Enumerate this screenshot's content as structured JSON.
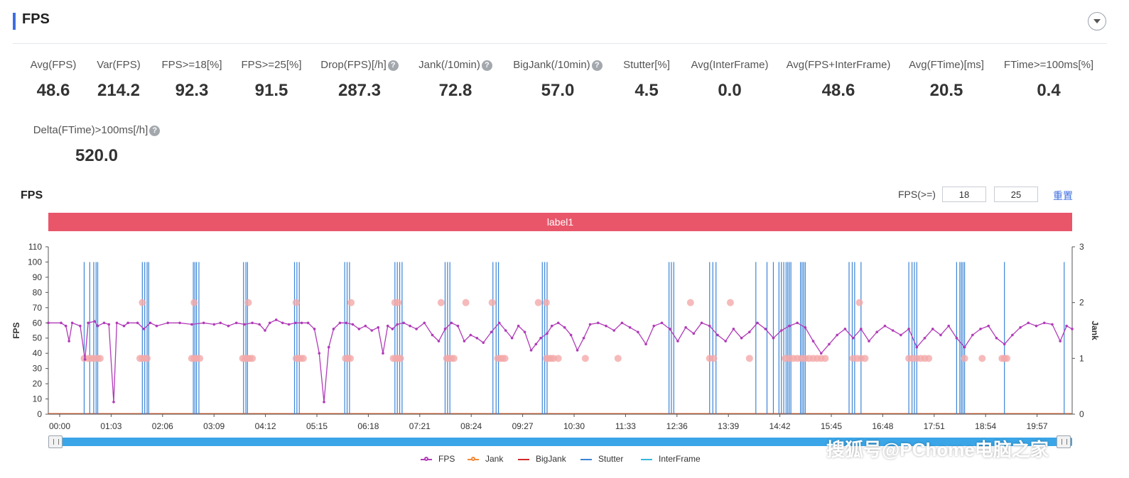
{
  "page": {
    "title": "FPS"
  },
  "metrics_row1": [
    {
      "label": "Avg(FPS)",
      "value": "48.6",
      "help": false
    },
    {
      "label": "Var(FPS)",
      "value": "214.2",
      "help": false
    },
    {
      "label": "FPS>=18[%]",
      "value": "92.3",
      "help": false
    },
    {
      "label": "FPS>=25[%]",
      "value": "91.5",
      "help": false
    },
    {
      "label": "Drop(FPS)[/h]",
      "value": "287.3",
      "help": true
    },
    {
      "label": "Jank(/10min)",
      "value": "72.8",
      "help": true
    },
    {
      "label": "BigJank(/10min)",
      "value": "57.0",
      "help": true
    },
    {
      "label": "Stutter[%]",
      "value": "4.5",
      "help": false
    },
    {
      "label": "Avg(InterFrame)",
      "value": "0.0",
      "help": false
    },
    {
      "label": "Avg(FPS+InterFrame)",
      "value": "48.6",
      "help": false
    },
    {
      "label": "Avg(FTime)[ms]",
      "value": "20.5",
      "help": false
    },
    {
      "label": "FTime>=100ms[%]",
      "value": "0.4",
      "help": false
    }
  ],
  "metrics_row2": [
    {
      "label": "Delta(FTime)>100ms[/h]",
      "value": "520.0",
      "help": true
    }
  ],
  "help_glyph": "?",
  "chart_section": {
    "title": "FPS",
    "threshold_label": "FPS(>=)",
    "threshold_low": "18",
    "threshold_high": "25",
    "reset_label": "重置",
    "band_label": "label1"
  },
  "watermark": "搜狐号@PChome电脑之家",
  "colors": {
    "fps": "#b13bb8",
    "jank": "#f08a3a",
    "bigjank": "#d42a2a",
    "stutter": "#3b84d6",
    "interframe": "#36b7e0",
    "band": "#e9566a",
    "jank_marker": "#f4a9a9",
    "slider": "#3aa6e8"
  },
  "chart_data": {
    "type": "line",
    "xlabel": "",
    "ylabel": "FPS",
    "y2label": "Jank",
    "ylim": [
      0,
      110
    ],
    "y2lim": [
      0,
      3
    ],
    "yticks": [
      0,
      10,
      20,
      30,
      40,
      50,
      60,
      70,
      80,
      90,
      100,
      110
    ],
    "y2ticks": [
      0,
      1,
      2,
      3
    ],
    "xticks": [
      "00:00",
      "01:03",
      "02:06",
      "03:09",
      "04:12",
      "05:15",
      "06:18",
      "07:21",
      "08:24",
      "09:27",
      "10:30",
      "11:33",
      "12:36",
      "13:39",
      "14:42",
      "15:45",
      "16:48",
      "17:51",
      "18:54",
      "19:57"
    ],
    "xlim_seconds": [
      0,
      1285
    ],
    "grid": false,
    "legend_position": "bottom",
    "series": [
      {
        "name": "FPS",
        "axis": "left",
        "points": [
          [
            0,
            60
          ],
          [
            16,
            60
          ],
          [
            22,
            58
          ],
          [
            26,
            48
          ],
          [
            30,
            60
          ],
          [
            40,
            58
          ],
          [
            46,
            36
          ],
          [
            50,
            60
          ],
          [
            58,
            61
          ],
          [
            62,
            58
          ],
          [
            70,
            60
          ],
          [
            76,
            59
          ],
          [
            82,
            8
          ],
          [
            86,
            60
          ],
          [
            95,
            58
          ],
          [
            100,
            60
          ],
          [
            112,
            60
          ],
          [
            120,
            56
          ],
          [
            128,
            60
          ],
          [
            136,
            58
          ],
          [
            150,
            60
          ],
          [
            165,
            60
          ],
          [
            180,
            59
          ],
          [
            195,
            60
          ],
          [
            208,
            59
          ],
          [
            216,
            60
          ],
          [
            226,
            58
          ],
          [
            236,
            60
          ],
          [
            246,
            59
          ],
          [
            256,
            60
          ],
          [
            265,
            59
          ],
          [
            272,
            55
          ],
          [
            278,
            60
          ],
          [
            286,
            62
          ],
          [
            294,
            60
          ],
          [
            302,
            59
          ],
          [
            310,
            60
          ],
          [
            318,
            60
          ],
          [
            326,
            60
          ],
          [
            334,
            56
          ],
          [
            340,
            40
          ],
          [
            346,
            8
          ],
          [
            352,
            44
          ],
          [
            358,
            56
          ],
          [
            366,
            60
          ],
          [
            374,
            60
          ],
          [
            382,
            59
          ],
          [
            390,
            56
          ],
          [
            398,
            58
          ],
          [
            406,
            55
          ],
          [
            414,
            57
          ],
          [
            420,
            40
          ],
          [
            426,
            58
          ],
          [
            432,
            56
          ],
          [
            438,
            59
          ],
          [
            446,
            60
          ],
          [
            454,
            58
          ],
          [
            462,
            56
          ],
          [
            472,
            60
          ],
          [
            482,
            52
          ],
          [
            490,
            48
          ],
          [
            498,
            56
          ],
          [
            506,
            60
          ],
          [
            514,
            58
          ],
          [
            522,
            48
          ],
          [
            530,
            52
          ],
          [
            538,
            50
          ],
          [
            546,
            47
          ],
          [
            556,
            54
          ],
          [
            566,
            60
          ],
          [
            574,
            55
          ],
          [
            582,
            50
          ],
          [
            590,
            58
          ],
          [
            598,
            54
          ],
          [
            606,
            42
          ],
          [
            612,
            46
          ],
          [
            618,
            50
          ],
          [
            626,
            53
          ],
          [
            632,
            58
          ],
          [
            640,
            60
          ],
          [
            648,
            57
          ],
          [
            656,
            52
          ],
          [
            664,
            42
          ],
          [
            672,
            50
          ],
          [
            680,
            59
          ],
          [
            690,
            60
          ],
          [
            700,
            58
          ],
          [
            710,
            55
          ],
          [
            720,
            60
          ],
          [
            730,
            57
          ],
          [
            740,
            54
          ],
          [
            750,
            46
          ],
          [
            760,
            58
          ],
          [
            770,
            60
          ],
          [
            780,
            56
          ],
          [
            790,
            48
          ],
          [
            800,
            57
          ],
          [
            810,
            53
          ],
          [
            820,
            60
          ],
          [
            830,
            58
          ],
          [
            840,
            52
          ],
          [
            850,
            48
          ],
          [
            860,
            56
          ],
          [
            870,
            50
          ],
          [
            880,
            54
          ],
          [
            890,
            60
          ],
          [
            900,
            56
          ],
          [
            910,
            50
          ],
          [
            920,
            55
          ],
          [
            930,
            58
          ],
          [
            940,
            60
          ],
          [
            950,
            57
          ],
          [
            960,
            48
          ],
          [
            970,
            40
          ],
          [
            980,
            46
          ],
          [
            990,
            52
          ],
          [
            1000,
            56
          ],
          [
            1010,
            50
          ],
          [
            1020,
            56
          ],
          [
            1030,
            48
          ],
          [
            1040,
            54
          ],
          [
            1050,
            58
          ],
          [
            1060,
            55
          ],
          [
            1070,
            52
          ],
          [
            1080,
            56
          ],
          [
            1090,
            44
          ],
          [
            1100,
            50
          ],
          [
            1110,
            56
          ],
          [
            1120,
            52
          ],
          [
            1130,
            58
          ],
          [
            1140,
            50
          ],
          [
            1150,
            44
          ],
          [
            1160,
            52
          ],
          [
            1170,
            56
          ],
          [
            1180,
            58
          ],
          [
            1190,
            50
          ],
          [
            1200,
            46
          ],
          [
            1210,
            52
          ],
          [
            1220,
            57
          ],
          [
            1230,
            60
          ],
          [
            1240,
            58
          ],
          [
            1250,
            60
          ],
          [
            1260,
            59
          ],
          [
            1270,
            48
          ],
          [
            1278,
            58
          ],
          [
            1285,
            56
          ]
        ]
      },
      {
        "name": "Jank",
        "axis": "right",
        "points": [
          [
            0,
            0
          ],
          [
            1285,
            0
          ]
        ]
      },
      {
        "name": "BigJank",
        "axis": "right",
        "points": [
          [
            0,
            0
          ],
          [
            1285,
            0
          ]
        ]
      },
      {
        "name": "Stutter",
        "axis": "left",
        "spikes": [
          [
            45,
            100
          ],
          [
            52,
            100
          ],
          [
            57,
            100
          ],
          [
            60,
            100
          ],
          [
            62,
            100
          ],
          [
            118,
            100
          ],
          [
            121,
            100
          ],
          [
            124,
            100
          ],
          [
            126,
            100
          ],
          [
            182,
            100
          ],
          [
            184,
            100
          ],
          [
            186,
            100
          ],
          [
            189,
            100
          ],
          [
            245,
            100
          ],
          [
            248,
            100
          ],
          [
            250,
            100
          ],
          [
            309,
            100
          ],
          [
            312,
            100
          ],
          [
            315,
            100
          ],
          [
            372,
            100
          ],
          [
            375,
            100
          ],
          [
            378,
            100
          ],
          [
            435,
            100
          ],
          [
            438,
            100
          ],
          [
            441,
            100
          ],
          [
            444,
            100
          ],
          [
            498,
            100
          ],
          [
            501,
            100
          ],
          [
            504,
            100
          ],
          [
            558,
            100
          ],
          [
            562,
            100
          ],
          [
            565,
            100
          ],
          [
            620,
            100
          ],
          [
            623,
            100
          ],
          [
            626,
            100
          ],
          [
            779,
            100
          ],
          [
            782,
            100
          ],
          [
            785,
            100
          ],
          [
            830,
            100
          ],
          [
            834,
            100
          ],
          [
            838,
            100
          ],
          [
            888,
            100
          ],
          [
            902,
            100
          ],
          [
            910,
            100
          ],
          [
            917,
            100
          ],
          [
            920,
            100
          ],
          [
            923,
            100
          ],
          [
            926,
            100
          ],
          [
            928,
            100
          ],
          [
            930,
            100
          ],
          [
            932,
            100
          ],
          [
            944,
            100
          ],
          [
            946,
            100
          ],
          [
            948,
            100
          ],
          [
            950,
            100
          ],
          [
            1005,
            100
          ],
          [
            1009,
            100
          ],
          [
            1012,
            100
          ],
          [
            1020,
            100
          ],
          [
            1080,
            100
          ],
          [
            1084,
            100
          ],
          [
            1087,
            100
          ],
          [
            1090,
            100
          ],
          [
            1140,
            100
          ],
          [
            1144,
            100
          ],
          [
            1146,
            100
          ],
          [
            1148,
            100
          ],
          [
            1150,
            100
          ],
          [
            1200,
            100
          ],
          [
            1275,
            100
          ]
        ]
      },
      {
        "name": "InterFrame",
        "axis": "left",
        "points": [
          [
            0,
            0
          ],
          [
            1285,
            0
          ]
        ]
      }
    ],
    "jank_markers_level1": [
      45,
      50,
      54,
      57,
      62,
      65,
      115,
      118,
      121,
      124,
      180,
      183,
      186,
      190,
      244,
      247,
      250,
      253,
      256,
      311,
      314,
      317,
      320,
      373,
      376,
      379,
      433,
      436,
      439,
      442,
      500,
      503,
      506,
      509,
      564,
      567,
      570,
      573,
      625,
      628,
      631,
      634,
      640,
      674,
      715,
      830,
      835,
      880,
      925,
      930,
      935,
      940,
      945,
      950,
      955,
      960,
      965,
      970,
      975,
      1010,
      1015,
      1020,
      1025,
      1080,
      1085,
      1090,
      1095,
      1100,
      1105,
      1150,
      1172,
      1197,
      1200,
      1203
    ],
    "jank_markers_level2": [
      118,
      183,
      251,
      311,
      380,
      435,
      439,
      493,
      524,
      557,
      615,
      625,
      806,
      856,
      1018
    ]
  }
}
